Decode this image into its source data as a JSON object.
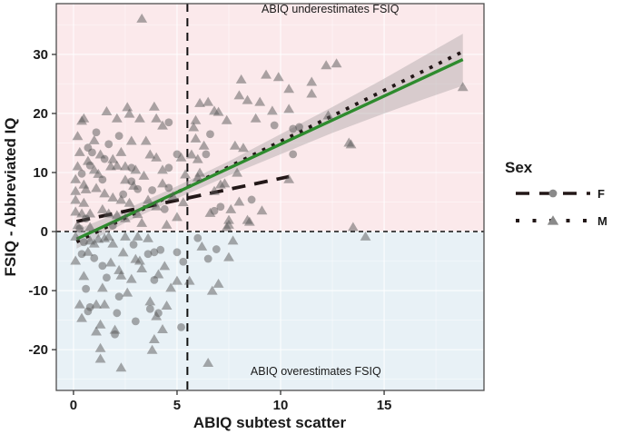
{
  "chart_data": {
    "type": "scatter",
    "title": "",
    "xlabel": "ABIQ subtest scatter",
    "ylabel": "FSIQ - Abbreviated IQ",
    "xlim": [
      -0.83,
      19.82
    ],
    "ylim": [
      -26.9,
      38.6
    ],
    "x_ticks": [
      0,
      5,
      10,
      15
    ],
    "y_ticks": [
      -20,
      -10,
      0,
      10,
      20,
      30
    ],
    "x_minor_ticks": [
      2.5,
      7.5,
      12.5,
      17.5
    ],
    "y_minor_ticks": [
      -25,
      -15,
      -5,
      5,
      15,
      25,
      35
    ],
    "grid": true,
    "legend_position": "right",
    "regions": [
      {
        "name": "underestimate",
        "label": "ABIQ underestimates FSIQ",
        "y_from": 0,
        "y_to": 38.6,
        "fill": "#fbe9eb",
        "label_color": "#a84550",
        "label_x": 12.4,
        "label_y": 37.1
      },
      {
        "name": "overestimate",
        "label": "ABIQ overestimates FSIQ",
        "y_from": -26.9,
        "y_to": 0,
        "fill": "#e8f1f6",
        "label_color": "#4343a6",
        "label_x": 11.7,
        "label_y": -24.3
      }
    ],
    "reference_lines": {
      "vertical_x": 5.5,
      "horizontal_y": 0,
      "color": "#111111"
    },
    "fit_lines": [
      {
        "name": "female",
        "style": "dashed",
        "color": "#221717",
        "x": [
          0.15,
          10.4
        ],
        "y": [
          1.71,
          9.3
        ]
      },
      {
        "name": "male",
        "style": "dotted",
        "color": "#221717",
        "x": [
          0.15,
          18.7
        ],
        "y": [
          -1.74,
          30.3
        ]
      },
      {
        "name": "combined",
        "style": "solid",
        "color": "#2e8b2e",
        "x": [
          0.15,
          18.8
        ],
        "y": [
          -1.26,
          29.14
        ]
      }
    ],
    "confidence_band": {
      "color": "#b5aeb0",
      "opacity": 0.5,
      "x": [
        0.15,
        2.5,
        5.0,
        7.5,
        10.0,
        12.5,
        15.0,
        16.9,
        18.8
      ],
      "upper": [
        0.3,
        3.7,
        7.7,
        11.9,
        16.5,
        21.1,
        25.9,
        29.7,
        33.5
      ],
      "lower": [
        -2.9,
        1.5,
        5.6,
        9.5,
        13.1,
        16.7,
        20.0,
        22.4,
        24.7
      ]
    },
    "series": [
      {
        "name": "F",
        "marker": "circle",
        "color": "#585858",
        "opacity": 0.5,
        "points": [
          [
            0.7,
            14.2
          ],
          [
            0.9,
            13.4
          ],
          [
            1.5,
            12.3
          ],
          [
            0.8,
            11.2
          ],
          [
            1.4,
            8.8
          ],
          [
            2.8,
            10.8
          ],
          [
            2.8,
            8.5
          ],
          [
            3.1,
            7.2
          ],
          [
            4.6,
            18.5
          ],
          [
            4.6,
            10.8
          ],
          [
            5.0,
            13.1
          ],
          [
            4.6,
            7.4
          ],
          [
            4.4,
            3.8
          ],
          [
            1.1,
            16.8
          ],
          [
            0.4,
            9.8
          ],
          [
            1.7,
            14.8
          ],
          [
            2.2,
            16.2
          ],
          [
            0.6,
            2.2
          ],
          [
            1.9,
            1.0
          ],
          [
            3.8,
            7.0
          ],
          [
            2.4,
            6.3
          ],
          [
            0.3,
            0.5
          ],
          [
            9.7,
            18.0
          ],
          [
            10.6,
            17.4
          ],
          [
            10.9,
            17.7
          ],
          [
            6.6,
            16.5
          ],
          [
            6.4,
            13.1
          ],
          [
            10.6,
            13.1
          ],
          [
            8.6,
            5.4
          ],
          [
            6.8,
            3.5
          ],
          [
            7.1,
            4.2
          ],
          [
            0.5,
            -1.8
          ],
          [
            0.4,
            -3.8
          ],
          [
            3.6,
            -3.8
          ],
          [
            3.9,
            -3.5
          ],
          [
            4.2,
            -3.1
          ],
          [
            5.0,
            -3.5
          ],
          [
            5.3,
            -5.1
          ],
          [
            1.4,
            -5.8
          ],
          [
            3.9,
            -8.2
          ],
          [
            0.6,
            -9.7
          ],
          [
            0.8,
            -12.8
          ],
          [
            0.7,
            -13.5
          ],
          [
            2.1,
            -13.8
          ],
          [
            2.0,
            -17.4
          ],
          [
            4.1,
            -13.8
          ],
          [
            3.7,
            -13.1
          ],
          [
            5.2,
            -16.2
          ],
          [
            2.9,
            -2.2
          ],
          [
            1.6,
            -7.8
          ],
          [
            2.2,
            -11.0
          ],
          [
            3.0,
            -15.2
          ],
          [
            1.0,
            -4.5
          ],
          [
            6.0,
            -1.1
          ],
          [
            6.5,
            -4.6
          ],
          [
            6.9,
            -3.0
          ]
        ]
      },
      {
        "name": "M",
        "marker": "triangle",
        "color": "#585858",
        "opacity": 0.5,
        "points": [
          [
            3.3,
            36.1
          ],
          [
            0.4,
            18.8
          ],
          [
            0.2,
            16.2
          ],
          [
            0.3,
            13.5
          ],
          [
            1.3,
            13.1
          ],
          [
            0.2,
            11.1
          ],
          [
            0.1,
            8.9
          ],
          [
            0.5,
            8.0
          ],
          [
            0.1,
            6.9
          ],
          [
            0.6,
            7.2
          ],
          [
            0.1,
            5.4
          ],
          [
            0.5,
            4.9
          ],
          [
            0.1,
            3.4
          ],
          [
            0.4,
            3.1
          ],
          [
            0.8,
            3.1
          ],
          [
            0.2,
            1.1
          ],
          [
            0.8,
            0.8
          ],
          [
            1.1,
            7.4
          ],
          [
            1.8,
            11.1
          ],
          [
            2.1,
            19.2
          ],
          [
            2.7,
            20.0
          ],
          [
            2.3,
            13.5
          ],
          [
            2.8,
            15.4
          ],
          [
            3.5,
            15.4
          ],
          [
            1.9,
            12.3
          ],
          [
            2.1,
            11.2
          ],
          [
            2.5,
            11.1
          ],
          [
            3.0,
            10.5
          ],
          [
            2.5,
            8.8
          ],
          [
            1.5,
            6.5
          ],
          [
            1.9,
            5.8
          ],
          [
            2.3,
            5.4
          ],
          [
            2.7,
            4.9
          ],
          [
            1.4,
            3.8
          ],
          [
            1.7,
            3.1
          ],
          [
            2.1,
            2.8
          ],
          [
            2.5,
            2.3
          ],
          [
            4.0,
            19.2
          ],
          [
            4.3,
            18.0
          ],
          [
            3.7,
            13.1
          ],
          [
            4.0,
            12.6
          ],
          [
            4.3,
            10.5
          ],
          [
            5.2,
            12.6
          ],
          [
            5.4,
            9.7
          ],
          [
            4.3,
            8.2
          ],
          [
            3.6,
            5.4
          ],
          [
            4.0,
            4.3
          ],
          [
            0.5,
            19.2
          ],
          [
            2.6,
            21.1
          ],
          [
            3.2,
            19.2
          ],
          [
            1.6,
            20.4
          ],
          [
            3.9,
            21.2
          ],
          [
            1.0,
            15.5
          ],
          [
            1.2,
            9.8
          ],
          [
            3.1,
            3.0
          ],
          [
            3.3,
            1.5
          ],
          [
            4.5,
            1.2
          ],
          [
            5.0,
            2.5
          ],
          [
            4.8,
            6.0
          ],
          [
            5.3,
            5.0
          ],
          [
            2.9,
            7.8
          ],
          [
            3.4,
            9.5
          ],
          [
            0.7,
            12.0
          ],
          [
            1.0,
            10.5
          ],
          [
            6.1,
            21.8
          ],
          [
            6.5,
            22.0
          ],
          [
            6.8,
            20.5
          ],
          [
            7.0,
            20.3
          ],
          [
            7.4,
            18.9
          ],
          [
            5.9,
            18.9
          ],
          [
            5.8,
            17.7
          ],
          [
            8.8,
            19.2
          ],
          [
            8.1,
            25.8
          ],
          [
            9.3,
            26.6
          ],
          [
            9.9,
            26.2
          ],
          [
            11.5,
            25.4
          ],
          [
            10.4,
            24.2
          ],
          [
            12.2,
            28.2
          ],
          [
            12.7,
            28.5
          ],
          [
            8.0,
            23.1
          ],
          [
            8.4,
            22.3
          ],
          [
            9.0,
            22.0
          ],
          [
            9.6,
            20.5
          ],
          [
            10.4,
            20.8
          ],
          [
            11.5,
            23.4
          ],
          [
            6.3,
            14.6
          ],
          [
            6.0,
            12.3
          ],
          [
            5.7,
            13.1
          ],
          [
            7.8,
            14.6
          ],
          [
            8.2,
            14.2
          ],
          [
            6.1,
            10.0
          ],
          [
            5.9,
            15.8
          ],
          [
            6.0,
            9.2
          ],
          [
            12.3,
            19.7
          ],
          [
            13.3,
            15.1
          ],
          [
            13.4,
            14.8
          ],
          [
            18.8,
            24.5
          ],
          [
            7.1,
            8.0
          ],
          [
            7.3,
            8.2
          ],
          [
            6.8,
            6.9
          ],
          [
            7.9,
            10.0
          ],
          [
            8.0,
            5.1
          ],
          [
            7.6,
            3.8
          ],
          [
            7.5,
            2.0
          ],
          [
            8.4,
            2.0
          ],
          [
            7.4,
            0.8
          ],
          [
            10.4,
            8.9
          ],
          [
            8.5,
            1.7
          ],
          [
            7.5,
            1.2
          ],
          [
            13.5,
            0.8
          ],
          [
            6.6,
            3.2
          ],
          [
            9.1,
            3.6
          ],
          [
            0.1,
            -0.8
          ],
          [
            0.8,
            -1.5
          ],
          [
            1.0,
            -2.0
          ],
          [
            1.2,
            -1.2
          ],
          [
            1.5,
            -1.1
          ],
          [
            1.7,
            -0.8
          ],
          [
            1.9,
            -2.0
          ],
          [
            0.1,
            -4.9
          ],
          [
            0.7,
            -3.4
          ],
          [
            2.5,
            -0.8
          ],
          [
            3.1,
            -0.8
          ],
          [
            3.6,
            -1.1
          ],
          [
            3.0,
            -4.6
          ],
          [
            3.2,
            -4.9
          ],
          [
            2.2,
            -6.5
          ],
          [
            2.3,
            -7.4
          ],
          [
            2.8,
            -8.0
          ],
          [
            4.4,
            -5.8
          ],
          [
            4.7,
            -9.5
          ],
          [
            1.4,
            -9.5
          ],
          [
            0.3,
            -12.3
          ],
          [
            1.1,
            -12.3
          ],
          [
            1.5,
            -12.3
          ],
          [
            0.4,
            -14.6
          ],
          [
            1.3,
            -15.7
          ],
          [
            2.0,
            -16.6
          ],
          [
            1.1,
            -16.9
          ],
          [
            3.7,
            -11.8
          ],
          [
            4.0,
            -14.3
          ],
          [
            3.9,
            -18.2
          ],
          [
            1.3,
            -19.7
          ],
          [
            3.8,
            -20.0
          ],
          [
            1.3,
            -21.5
          ],
          [
            2.3,
            -23.0
          ],
          [
            4.3,
            -16.5
          ],
          [
            4.5,
            -12.5
          ],
          [
            2.6,
            -10.3
          ],
          [
            1.8,
            -5.2
          ],
          [
            2.4,
            -3.5
          ],
          [
            0.5,
            -7.5
          ],
          [
            4.1,
            -7.2
          ],
          [
            3.3,
            -6.2
          ],
          [
            5.0,
            -8.3
          ],
          [
            5.6,
            -8.3
          ],
          [
            7.5,
            -4.3
          ],
          [
            7.0,
            -8.8
          ],
          [
            6.7,
            -10.0
          ],
          [
            6.5,
            -22.2
          ],
          [
            14.1,
            -0.8
          ],
          [
            6.2,
            -2.5
          ],
          [
            7.7,
            -1.5
          ]
        ]
      }
    ],
    "legend": {
      "title": "Sex",
      "sample_line_color": "#221717",
      "marker_color": "#8a8a8a",
      "entries": [
        {
          "label": "F",
          "line": "dashed",
          "marker": "circle"
        },
        {
          "label": "M",
          "line": "dotted",
          "marker": "triangle"
        }
      ]
    }
  }
}
